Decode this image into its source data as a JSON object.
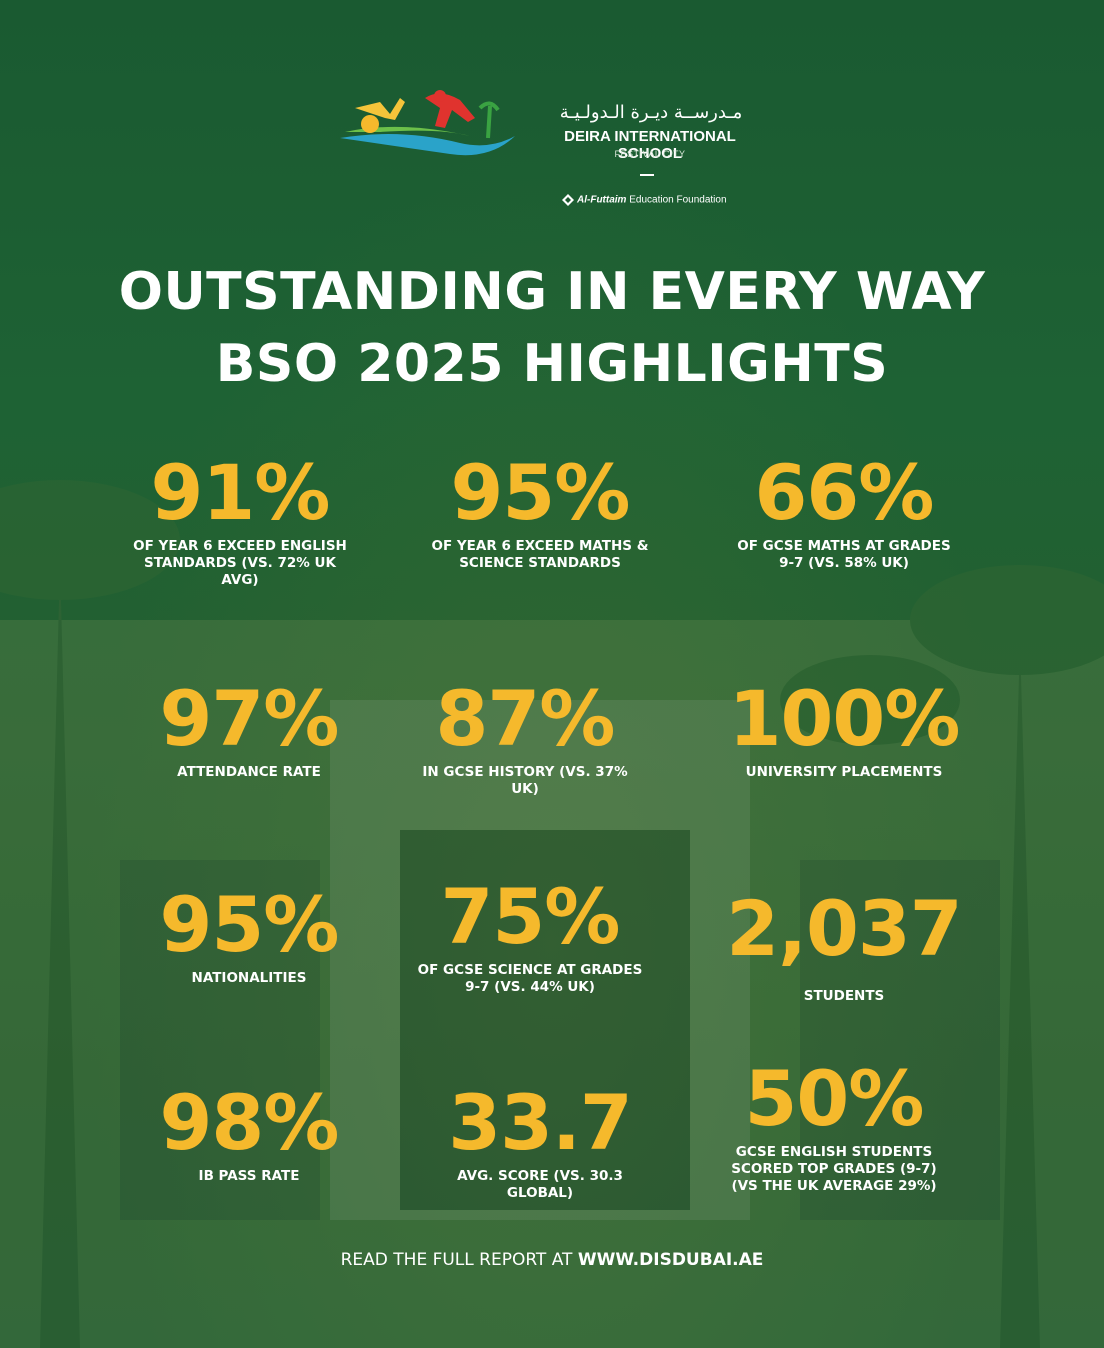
{
  "logo": {
    "arabic_name": "مـدرســة ديـرة الـدولـيـة",
    "name": "DEIRA INTERNATIONAL SCHOOL",
    "sub": "FESTIVAL CITY",
    "foundation_brand": "Al-Futtaim",
    "foundation_rest": "Education Foundation"
  },
  "headline": {
    "line1": "OUTSTANDING IN EVERY WAY",
    "line2": "BSO 2025 HIGHLIGHTS"
  },
  "stats": [
    {
      "value": "91%",
      "label": "OF YEAR 6 EXCEED ENGLISH STANDARDS (VS. 72% UK AVG)"
    },
    {
      "value": "95%",
      "label": "OF YEAR 6 EXCEED MATHS & SCIENCE STANDARDS"
    },
    {
      "value": "66%",
      "label": "OF GCSE MATHS AT GRADES 9-7 (VS. 58% UK)"
    },
    {
      "value": "97%",
      "label": "ATTENDANCE RATE"
    },
    {
      "value": "87%",
      "label": "IN GCSE HISTORY (VS. 37% UK)"
    },
    {
      "value": "100%",
      "label": "UNIVERSITY PLACEMENTS"
    },
    {
      "value": "95%",
      "label": "NATIONALITIES"
    },
    {
      "value": "75%",
      "label": "OF GCSE SCIENCE AT GRADES 9-7 (VS. 44% UK)"
    },
    {
      "value": "2,037",
      "label": "STUDENTS"
    },
    {
      "value": "98%",
      "label": "IB PASS RATE"
    },
    {
      "value": "33.7",
      "label": "AVG. SCORE (VS. 30.3 GLOBAL)"
    },
    {
      "value": "50%",
      "label": "GCSE ENGLISH STUDENTS SCORED TOP GRADES (9-7) (VS THE UK AVERAGE 29%)"
    }
  ],
  "footer": {
    "prefix": "READ THE FULL REPORT AT",
    "url": "WWW.DISDUBAI.AE"
  },
  "colors": {
    "background": "#1d5a30",
    "accent": "#f5b92c",
    "text": "#ffffff"
  }
}
